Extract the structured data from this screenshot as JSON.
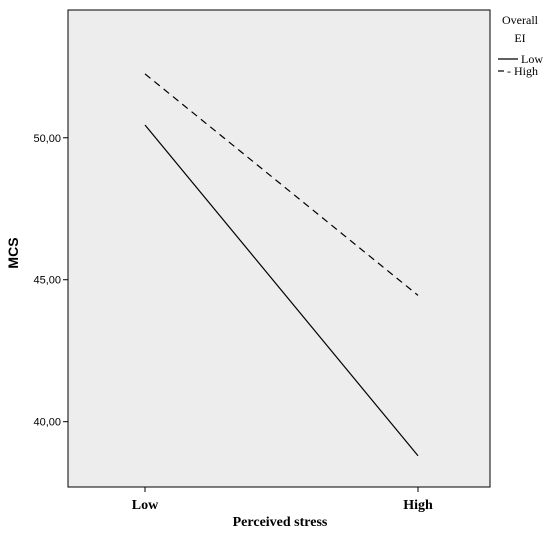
{
  "chart_data": {
    "type": "line",
    "categories": [
      "Low",
      "High"
    ],
    "series": [
      {
        "name": "Low",
        "values": [
          50.45,
          38.8
        ],
        "style": "solid"
      },
      {
        "name": "High",
        "values": [
          52.25,
          44.45
        ],
        "style": "dashed"
      }
    ],
    "xlabel": "Perceived stress",
    "ylabel": "MCS",
    "ylim": [
      37.7,
      54.5
    ],
    "yticks": [
      40,
      45,
      50
    ],
    "ytick_labels": [
      "40,00",
      "45,00",
      "50,00"
    ],
    "legend": {
      "title_lines": [
        "Overall",
        "EI"
      ],
      "placement": "top-right, outside plot",
      "entries": [
        "Low",
        "- High"
      ]
    },
    "grid": false,
    "plot_background": "#ededed",
    "line_color": "#000000"
  }
}
